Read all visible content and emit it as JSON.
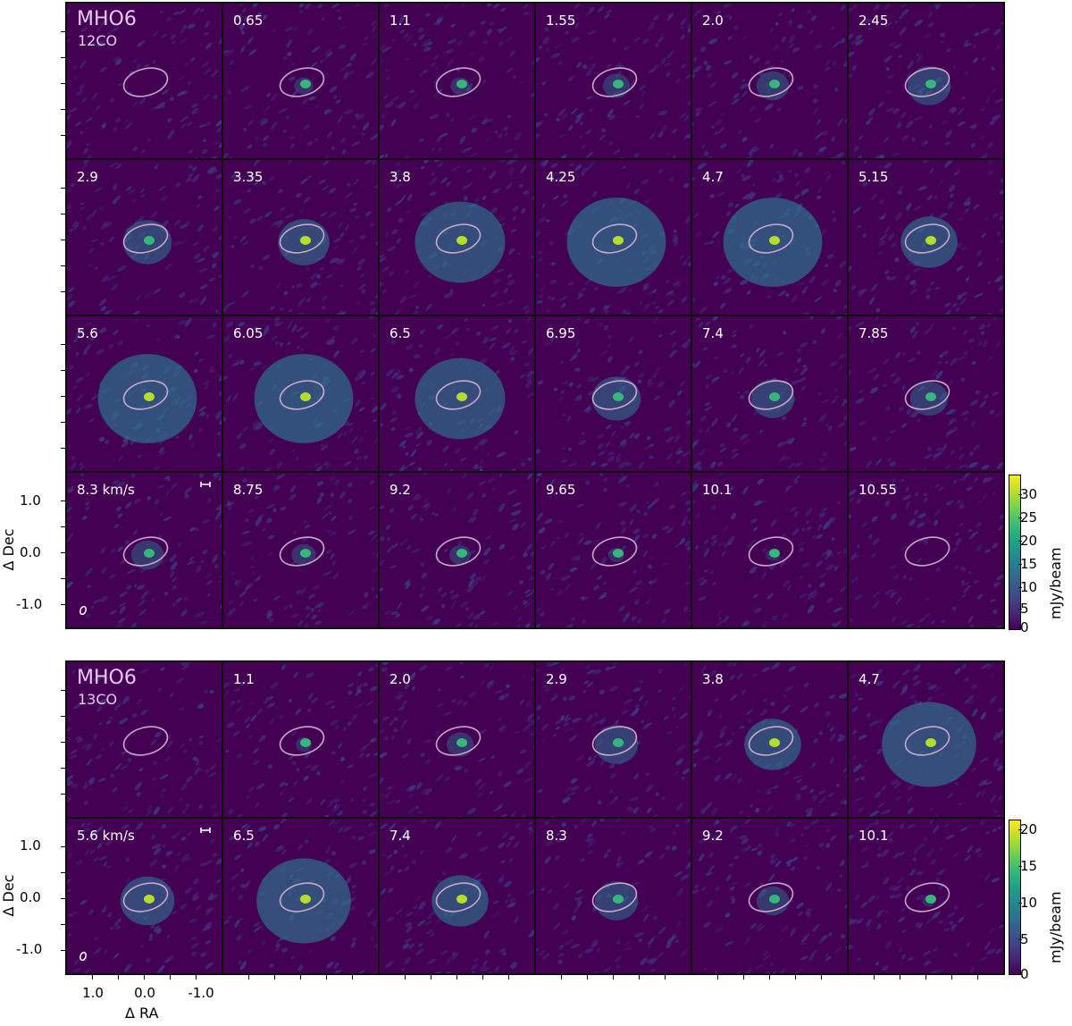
{
  "colors": {
    "background": "#440154",
    "ellipse": "#c9a6c9",
    "label": "#ffffff",
    "source_label": "#e9c9ef"
  },
  "top": {
    "source": "MHO6",
    "molecule": "12CO",
    "channels": [
      "0.65",
      "1.1",
      "1.55",
      "2.0",
      "2.45",
      "2.9",
      "3.35",
      "3.8",
      "4.25",
      "4.7",
      "5.15",
      "5.6",
      "6.05",
      "6.5",
      "6.95",
      "7.4",
      "7.85",
      "8.3 km/s",
      "8.75",
      "9.2",
      "9.65",
      "10.1",
      "10.55"
    ],
    "emission": [
      0,
      0.15,
      0.15,
      0.3,
      0.4,
      0.6,
      0.7,
      0.75,
      0.9,
      1.0,
      1.0,
      0.85,
      1.0,
      1.0,
      0.9,
      0.7,
      0.6,
      0.5,
      0.4,
      0.25,
      0.2,
      0.1,
      0.05,
      0.0
    ],
    "colorbar": {
      "label": "mJy/beam",
      "ticks": [
        "30",
        "25",
        "20",
        "15",
        "10",
        "5",
        "0"
      ],
      "max": 33
    },
    "y_ticks": [
      "1.0",
      "0.0",
      "-1.0"
    ],
    "ylabel": "Δ Dec"
  },
  "bottom": {
    "source": "MHO6",
    "molecule": "13CO",
    "channels": [
      "1.1",
      "2.0",
      "2.9",
      "3.8",
      "4.7",
      "5.6 km/s",
      "6.5",
      "7.4",
      "8.3",
      "9.2",
      "10.1"
    ],
    "emission": [
      0,
      0.1,
      0.3,
      0.6,
      0.85,
      0.95,
      0.8,
      0.95,
      0.85,
      0.6,
      0.4,
      0.05
    ],
    "colorbar": {
      "label": "mJy/beam",
      "ticks": [
        "20",
        "15",
        "10",
        "5",
        "0"
      ],
      "max": 21
    },
    "y_ticks": [
      "1.0",
      "0.0",
      "-1.0"
    ],
    "ylabel": "Δ Dec",
    "x_ticks": [
      "1.0",
      "0.0",
      "-1.0"
    ],
    "xlabel": "Δ RA"
  }
}
